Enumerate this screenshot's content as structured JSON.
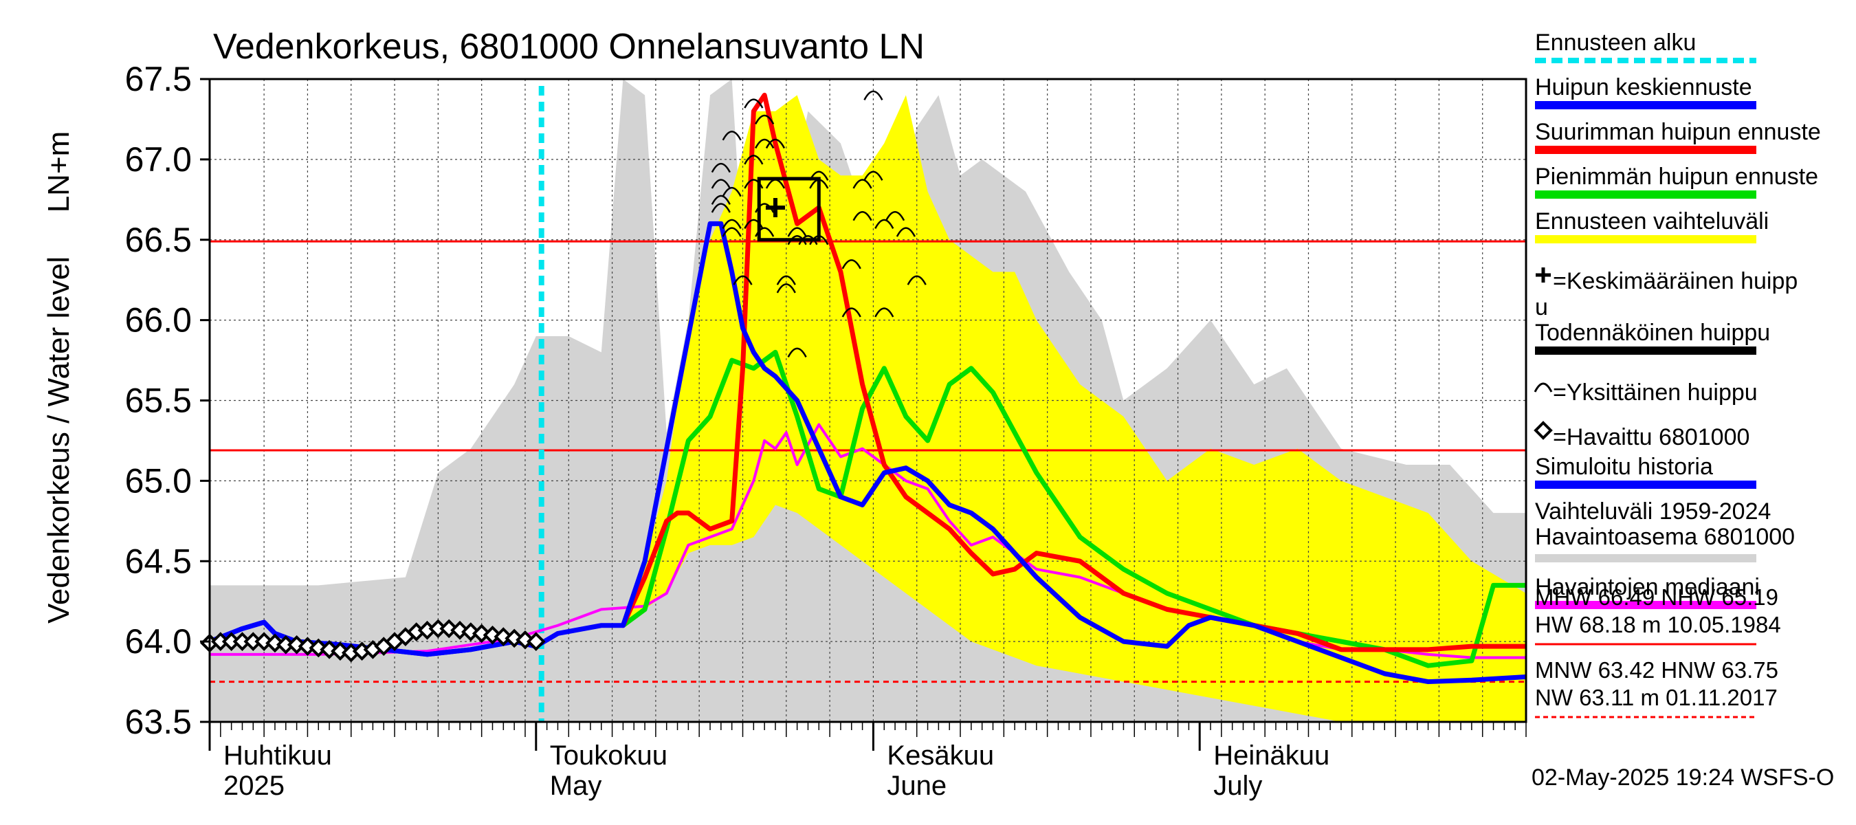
{
  "chart_data": {
    "type": "line",
    "title": "Vedenkorkeus, 6801000 Onnelansuvanto LN",
    "ylabel": "Vedenkorkeus / Water level",
    "yunit": "LN+m",
    "ylim": [
      63.5,
      67.5
    ],
    "yticks": [
      "63.5",
      "64.0",
      "64.5",
      "65.0",
      "65.5",
      "66.0",
      "66.5",
      "67.0",
      "67.5"
    ],
    "xlim": [
      0,
      121
    ],
    "month_labels": [
      {
        "day": 0,
        "fi": "Huhtikuu",
        "en": "2025"
      },
      {
        "day": 30,
        "fi": "Toukokuu",
        "en": "May"
      },
      {
        "day": 61,
        "fi": "Kesäkuu",
        "en": "June"
      },
      {
        "day": 91,
        "fi": "Heinäkuu",
        "en": "July"
      }
    ],
    "forecast_start_day": 30.5,
    "reference_lines": [
      {
        "name": "MHW",
        "value": 66.49,
        "color": "#ff0000",
        "style": "solid"
      },
      {
        "name": "NHW",
        "value": 65.19,
        "color": "#ff0000",
        "style": "solid"
      },
      {
        "name": "HNW",
        "value": 63.75,
        "color": "#ff0000",
        "style": "dashed"
      }
    ],
    "bands": [
      {
        "name": "Vaihteluväli 1959-2024",
        "color": "#d3d3d3",
        "x": [
          0,
          10,
          18,
          21,
          24,
          28,
          30,
          33,
          36,
          38,
          40,
          42,
          44,
          46,
          48,
          50,
          52,
          55,
          58,
          61,
          63,
          65,
          67,
          69,
          71,
          75,
          79,
          82,
          84,
          88,
          92,
          96,
          99,
          104,
          110,
          114,
          118,
          121
        ],
        "upper": [
          64.35,
          64.35,
          64.4,
          65.05,
          65.2,
          65.6,
          65.9,
          65.9,
          65.8,
          67.5,
          67.4,
          65.3,
          66.0,
          67.4,
          67.5,
          65.3,
          66.3,
          67.3,
          67.1,
          66.5,
          66.7,
          67.2,
          67.4,
          66.9,
          67.0,
          66.8,
          66.3,
          66.0,
          65.5,
          65.7,
          66.0,
          65.6,
          65.7,
          65.2,
          65.1,
          65.1,
          64.8,
          64.8
        ],
        "lower": [
          63.5,
          63.5,
          63.5,
          63.5,
          63.5,
          63.5,
          63.5,
          63.5,
          63.5,
          63.5,
          63.5,
          63.5,
          63.5,
          63.5,
          63.5,
          63.5,
          63.5,
          63.5,
          63.5,
          63.5,
          63.5,
          63.5,
          63.5,
          63.5,
          63.5,
          63.5,
          63.5,
          63.5,
          63.5,
          63.5,
          63.5,
          63.5,
          63.5,
          63.5,
          63.5,
          63.5,
          63.5,
          63.5
        ]
      },
      {
        "name": "Ennusteen vaihteluväli",
        "color": "#ffff00",
        "x": [
          38,
          40,
          42,
          44,
          46,
          48,
          50,
          52,
          54,
          56,
          58,
          60,
          62,
          64,
          66,
          68,
          70,
          72,
          74,
          76,
          80,
          84,
          88,
          92,
          96,
          100,
          104,
          108,
          112,
          116,
          121
        ],
        "upper": [
          64.15,
          64.5,
          65.0,
          66.0,
          66.5,
          66.8,
          67.3,
          67.3,
          67.4,
          67.0,
          66.9,
          66.9,
          67.1,
          67.4,
          66.8,
          66.5,
          66.4,
          66.3,
          66.3,
          66.0,
          65.6,
          65.4,
          65.0,
          65.2,
          65.1,
          65.2,
          65.0,
          64.9,
          64.8,
          64.5,
          64.3
        ],
        "lower": [
          64.1,
          64.2,
          64.3,
          64.55,
          64.6,
          64.6,
          64.65,
          64.85,
          64.8,
          64.7,
          64.6,
          64.5,
          64.4,
          64.3,
          64.2,
          64.1,
          64.0,
          63.95,
          63.9,
          63.85,
          63.8,
          63.75,
          63.7,
          63.65,
          63.6,
          63.55,
          63.5,
          63.5,
          63.5,
          63.5,
          63.5
        ]
      }
    ],
    "series": [
      {
        "name": "Havaintojen mediaani",
        "color": "#ff00ff",
        "width": 4,
        "x": [
          0,
          10,
          20,
          28,
          32,
          36,
          40,
          42,
          44,
          48,
          50,
          51,
          52,
          53,
          54,
          56,
          58,
          60,
          62,
          64,
          66,
          68,
          70,
          72,
          74,
          76,
          80,
          84,
          88,
          92,
          96,
          100,
          104,
          108,
          112,
          116,
          121
        ],
        "y": [
          63.92,
          63.92,
          63.94,
          64.02,
          64.1,
          64.2,
          64.22,
          64.3,
          64.6,
          64.7,
          65.0,
          65.25,
          65.2,
          65.3,
          65.1,
          65.35,
          65.15,
          65.2,
          65.1,
          65.0,
          64.95,
          64.75,
          64.6,
          64.65,
          64.55,
          64.45,
          64.4,
          64.3,
          64.2,
          64.15,
          64.1,
          64.0,
          63.95,
          63.95,
          63.92,
          63.9,
          63.9
        ]
      },
      {
        "name": "Pienimmän huipun ennuste",
        "color": "#00dd00",
        "width": 7,
        "x": [
          38,
          40,
          42,
          44,
          46,
          48,
          50,
          52,
          54,
          56,
          58,
          60,
          62,
          64,
          66,
          68,
          70,
          72,
          74,
          76,
          80,
          84,
          88,
          92,
          96,
          100,
          104,
          108,
          112,
          116,
          118,
          121
        ],
        "y": [
          64.1,
          64.2,
          64.7,
          65.25,
          65.4,
          65.75,
          65.7,
          65.8,
          65.4,
          64.95,
          64.9,
          65.45,
          65.7,
          65.4,
          65.25,
          65.6,
          65.7,
          65.55,
          65.3,
          65.05,
          64.65,
          64.45,
          64.3,
          64.2,
          64.1,
          64.05,
          64.0,
          63.95,
          63.85,
          63.88,
          64.35,
          64.35
        ]
      },
      {
        "name": "Suurimman huipun ennuste",
        "color": "#ff0000",
        "width": 7,
        "x": [
          38,
          40,
          42,
          43,
          44,
          46,
          48,
          49,
          50,
          51,
          52,
          53,
          54,
          56,
          58,
          60,
          62,
          64,
          66,
          68,
          70,
          72,
          74,
          76,
          80,
          84,
          88,
          92,
          96,
          100,
          104,
          108,
          112,
          116,
          121
        ],
        "y": [
          64.1,
          64.4,
          64.75,
          64.8,
          64.8,
          64.7,
          64.75,
          65.7,
          67.3,
          67.4,
          67.1,
          66.85,
          66.6,
          66.7,
          66.3,
          65.6,
          65.1,
          64.9,
          64.8,
          64.7,
          64.55,
          64.42,
          64.45,
          64.55,
          64.5,
          64.3,
          64.2,
          64.15,
          64.1,
          64.05,
          63.95,
          63.95,
          63.95,
          63.97,
          63.97
        ]
      },
      {
        "name": "Huipun keskiennuste",
        "color": "#0000ff",
        "width": 7,
        "x": [
          0,
          3,
          5,
          6,
          8,
          12,
          16,
          20,
          24,
          28,
          30,
          32,
          36,
          38,
          40,
          42,
          44,
          46,
          47,
          48,
          49,
          50,
          51,
          52,
          54,
          56,
          58,
          60,
          62,
          64,
          66,
          68,
          70,
          72,
          76,
          80,
          84,
          88,
          90,
          92,
          96,
          100,
          104,
          108,
          112,
          116,
          121
        ],
        "y": [
          64.0,
          64.08,
          64.12,
          64.05,
          64.0,
          63.98,
          63.95,
          63.92,
          63.95,
          64.0,
          63.97,
          64.05,
          64.1,
          64.1,
          64.5,
          65.2,
          65.9,
          66.6,
          66.6,
          66.3,
          65.95,
          65.8,
          65.7,
          65.65,
          65.5,
          65.2,
          64.9,
          64.85,
          65.05,
          65.08,
          65.0,
          64.85,
          64.8,
          64.7,
          64.4,
          64.15,
          64.0,
          63.97,
          64.1,
          64.15,
          64.1,
          64.0,
          63.9,
          63.8,
          63.75,
          63.76,
          63.78
        ]
      },
      {
        "name": "Simuloitu historia",
        "color": "#0000ff",
        "width": 7,
        "x": [
          0,
          3,
          5,
          6,
          8,
          12,
          16,
          20,
          24,
          28,
          30
        ],
        "y": [
          64.0,
          64.08,
          64.12,
          64.05,
          64.0,
          63.98,
          63.95,
          63.92,
          63.95,
          64.0,
          63.97
        ]
      }
    ],
    "observed": {
      "name": "Havaittu 6801000",
      "x": [
        0,
        1,
        2,
        3,
        4,
        5,
        6,
        7,
        8,
        9,
        10,
        11,
        12,
        13,
        14,
        15,
        16,
        17,
        18,
        19,
        20,
        21,
        22,
        23,
        24,
        25,
        26,
        27,
        28,
        29,
        30
      ],
      "y": [
        63.99,
        64.0,
        64.0,
        64.0,
        64.0,
        64.0,
        63.99,
        63.98,
        63.98,
        63.97,
        63.96,
        63.95,
        63.94,
        63.93,
        63.94,
        63.95,
        63.97,
        64.0,
        64.03,
        64.06,
        64.07,
        64.08,
        64.08,
        64.07,
        64.06,
        64.05,
        64.04,
        64.03,
        64.02,
        64.01,
        64.0
      ]
    },
    "individual_peaks": {
      "name": "Yksittäinen huippu",
      "x": [
        47,
        47,
        47,
        47,
        48,
        48,
        48,
        48,
        49,
        50,
        50,
        50,
        50,
        51,
        51,
        51,
        51,
        52,
        52,
        53,
        53,
        54,
        54,
        54,
        55,
        56,
        56,
        56,
        59,
        59,
        60,
        60,
        61,
        61,
        62,
        62,
        63,
        64,
        65
      ],
      "y": [
        66.7,
        66.75,
        66.85,
        66.95,
        66.55,
        66.6,
        66.8,
        67.15,
        66.25,
        66.6,
        66.85,
        67.0,
        67.35,
        66.55,
        66.7,
        67.1,
        67.25,
        66.85,
        67.1,
        66.2,
        66.25,
        66.5,
        66.55,
        65.8,
        66.5,
        66.5,
        66.85,
        66.9,
        66.05,
        66.35,
        66.85,
        66.65,
        66.9,
        67.4,
        66.05,
        66.6,
        66.65,
        66.55,
        66.25
      ]
    },
    "likely_peak": {
      "x0": 50.5,
      "x1": 56,
      "y0": 66.5,
      "y1": 66.88
    },
    "mean_peak": {
      "x": 52,
      "y": 66.7
    },
    "legend_position": "right",
    "legend": [
      {
        "label": "Ennusteen alku",
        "color": "#00e5ee",
        "kind": "dashed"
      },
      {
        "label": "Huipun keskiennuste",
        "color": "#0000ff",
        "kind": "line"
      },
      {
        "label": "Suurimman huipun ennuste",
        "color": "#ff0000",
        "kind": "line"
      },
      {
        "label": "Pienimmän huipun ennuste",
        "color": "#00dd00",
        "kind": "line"
      },
      {
        "label": "Ennusteen vaihteluväli",
        "color": "#ffff00",
        "kind": "line"
      },
      {
        "label": "=Keskimääräinen huipp",
        "label2": "u",
        "kind": "plus"
      },
      {
        "label": "Todennäköinen huippu",
        "color": "#000000",
        "kind": "line"
      },
      {
        "label": "=Yksittäinen huippu",
        "kind": "arc"
      },
      {
        "label": "=Havaittu 6801000",
        "kind": "diamond"
      },
      {
        "label": "Simuloitu historia",
        "color": "#0000ff",
        "kind": "line"
      },
      {
        "label": "Vaihteluväli 1959-2024",
        "label2": " Havaintoasema 6801000",
        "color": "#d3d3d3",
        "kind": "line"
      },
      {
        "label": "Havaintojen mediaani",
        "color": "#ff00ff",
        "kind": "line"
      }
    ],
    "stats": [
      {
        "line1": "MHW  66.49 NHW  65.19",
        "line2": "HW  68.18 m 10.05.1984",
        "color": "#ff0000",
        "style": "solid"
      },
      {
        "line1": "MNW  63.42 HNW  63.75",
        "line2": "NW  63.11 m 01.11.2017",
        "color": "#ff0000",
        "style": "dashed"
      }
    ],
    "footer": "02-May-2025 19:24 WSFS-O",
    "grid": true
  }
}
